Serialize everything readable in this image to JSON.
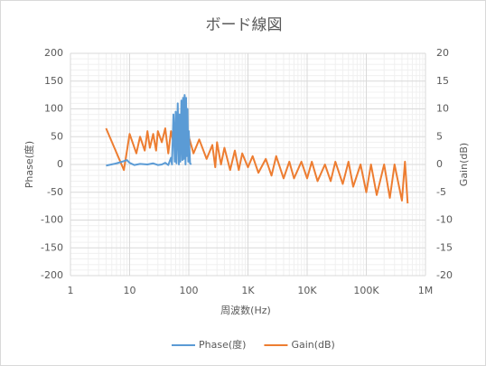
{
  "chart_data": {
    "type": "line",
    "title": "ボード線図",
    "x_label": "周波数(Hz)",
    "y_label": "Phase(度)",
    "y2_label": "Gain(dB)",
    "x_scale": "log",
    "grid": true,
    "minor_grid": true,
    "legend": "bottom",
    "xlim": [
      1,
      1000000
    ],
    "xticks": [
      1,
      10,
      100,
      {
        "value": 1000,
        "label": "1K"
      },
      {
        "value": 10000,
        "label": "10K"
      },
      {
        "value": 100000,
        "label": "100K"
      },
      {
        "value": 1000000,
        "label": "1M"
      }
    ],
    "ylim": [
      -200,
      200
    ],
    "yticks": [
      -200,
      -150,
      -100,
      -50,
      0,
      50,
      100,
      150,
      200
    ],
    "y2lim": [
      -20,
      20
    ],
    "y2ticks": [
      -20,
      -15,
      -10,
      -5,
      0,
      5,
      10,
      15,
      20
    ],
    "series": [
      {
        "name": "Phase(度)",
        "color": "#5b9bd5",
        "axis": "y",
        "x": [
          4,
          6,
          8,
          9,
          10,
          12,
          15,
          20,
          25,
          30,
          35,
          40,
          45,
          50,
          52,
          55,
          58,
          60,
          62,
          65,
          68,
          70,
          72,
          75,
          78,
          80,
          82,
          85,
          88,
          90,
          92,
          95,
          98,
          100,
          105,
          110
        ],
        "values": [
          -2,
          2,
          6,
          8,
          3,
          -1,
          1,
          0,
          2,
          -1,
          0,
          3,
          -1,
          12,
          0,
          90,
          5,
          95,
          2,
          110,
          0,
          90,
          5,
          115,
          8,
          120,
          10,
          125,
          0,
          120,
          15,
          100,
          5,
          60,
          2,
          0
        ]
      },
      {
        "name": "Gain(dB)",
        "color": "#ed7d31",
        "axis": "y2",
        "x": [
          4,
          8,
          10,
          13,
          15,
          18,
          20,
          22,
          25,
          28,
          30,
          35,
          40,
          45,
          50,
          55,
          60,
          70,
          80,
          90,
          100,
          120,
          150,
          200,
          250,
          280,
          300,
          350,
          400,
          500,
          600,
          700,
          800,
          1000,
          1200,
          1500,
          2000,
          2500,
          3000,
          4000,
          5000,
          6000,
          8000,
          10000,
          12000,
          15000,
          20000,
          25000,
          30000,
          40000,
          50000,
          60000,
          80000,
          100000,
          120000,
          150000,
          200000,
          250000,
          300000,
          400000,
          450000,
          500000
        ],
        "values": [
          6.5,
          -1,
          5.5,
          2,
          5,
          2.5,
          6,
          3,
          5.5,
          2.5,
          6,
          4,
          6.5,
          2,
          6,
          4,
          6.5,
          5,
          4.5,
          6,
          5,
          2,
          4.5,
          1,
          3.5,
          -0.5,
          4,
          0,
          3,
          -1,
          2.5,
          -1,
          2,
          -0.5,
          1.5,
          -1.5,
          1,
          -2,
          1.5,
          -2.5,
          0.5,
          -2.5,
          0.5,
          -2.5,
          0.5,
          -3,
          0,
          -3,
          0.5,
          -3.5,
          0.5,
          -4,
          0,
          -5,
          0,
          -5.5,
          0,
          -6,
          0,
          -6.5,
          0.5,
          -7
        ]
      }
    ]
  }
}
